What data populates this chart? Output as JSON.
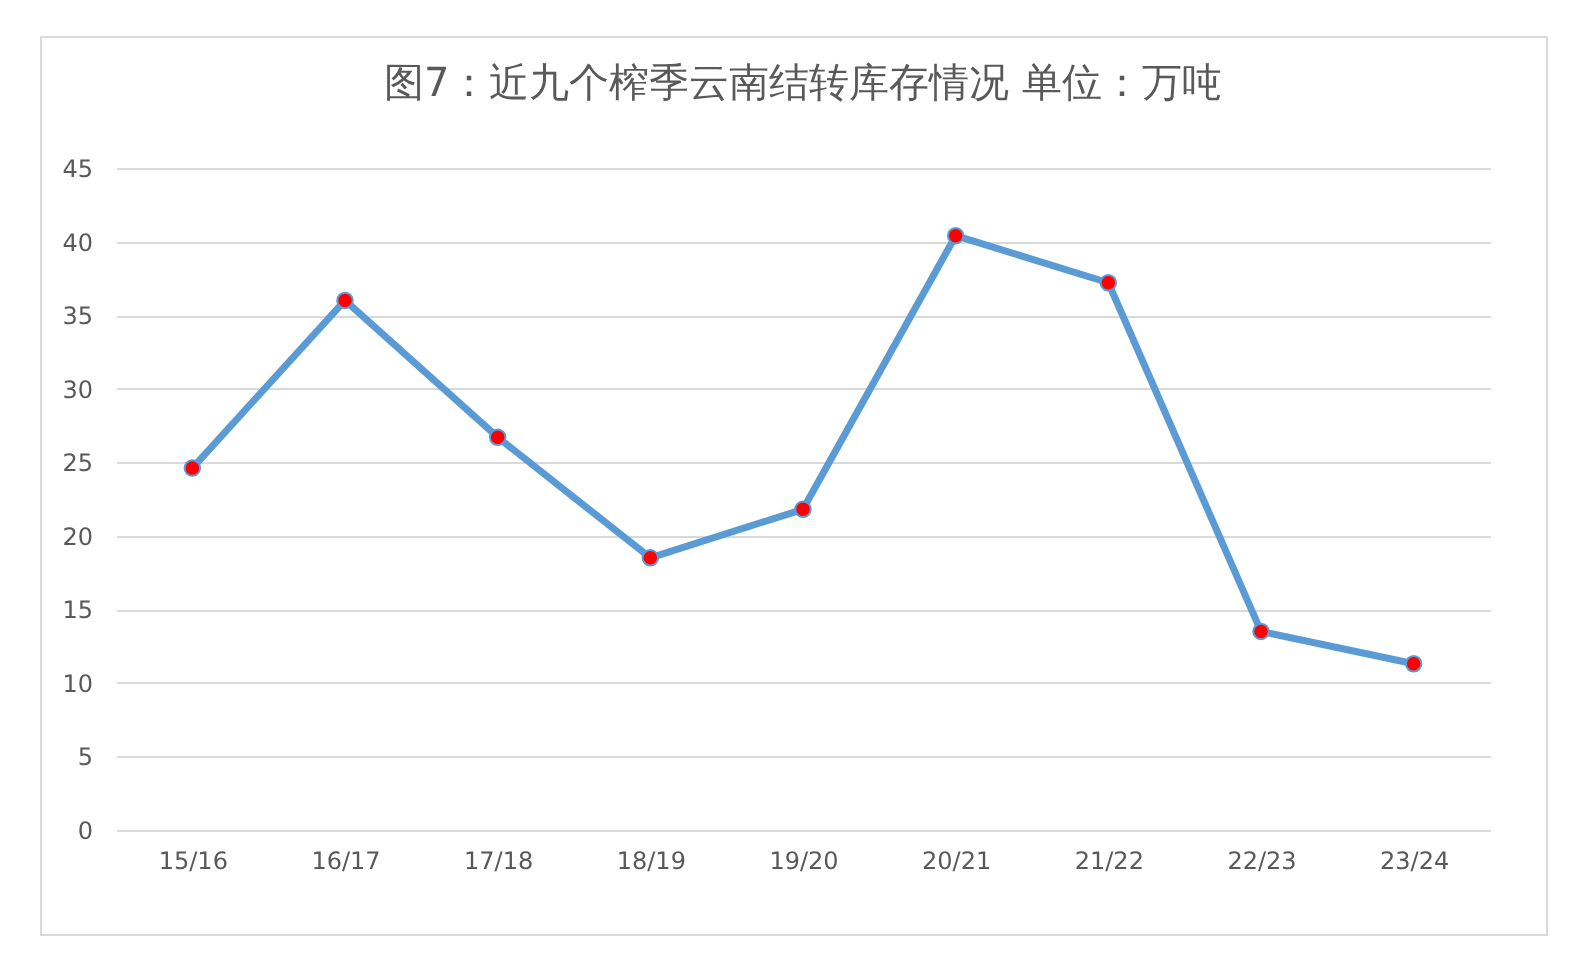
{
  "chart_data": {
    "type": "line",
    "title": "图7：近九个榨季云南结转库存情况 单位：万吨",
    "categories": [
      "15/16",
      "16/17",
      "17/18",
      "18/19",
      "19/20",
      "20/21",
      "21/22",
      "22/23",
      "23/24"
    ],
    "series": [
      {
        "color": "#5b9bd5",
        "values": [
          24.6,
          36.0,
          26.7,
          18.5,
          21.8,
          40.4,
          37.2,
          13.5,
          11.3
        ]
      }
    ],
    "ylim": [
      0,
      45
    ],
    "yticks": [
      0,
      5,
      10,
      15,
      20,
      25,
      30,
      35,
      40,
      45
    ],
    "grid": "y",
    "marker": "circle",
    "legend": false
  }
}
